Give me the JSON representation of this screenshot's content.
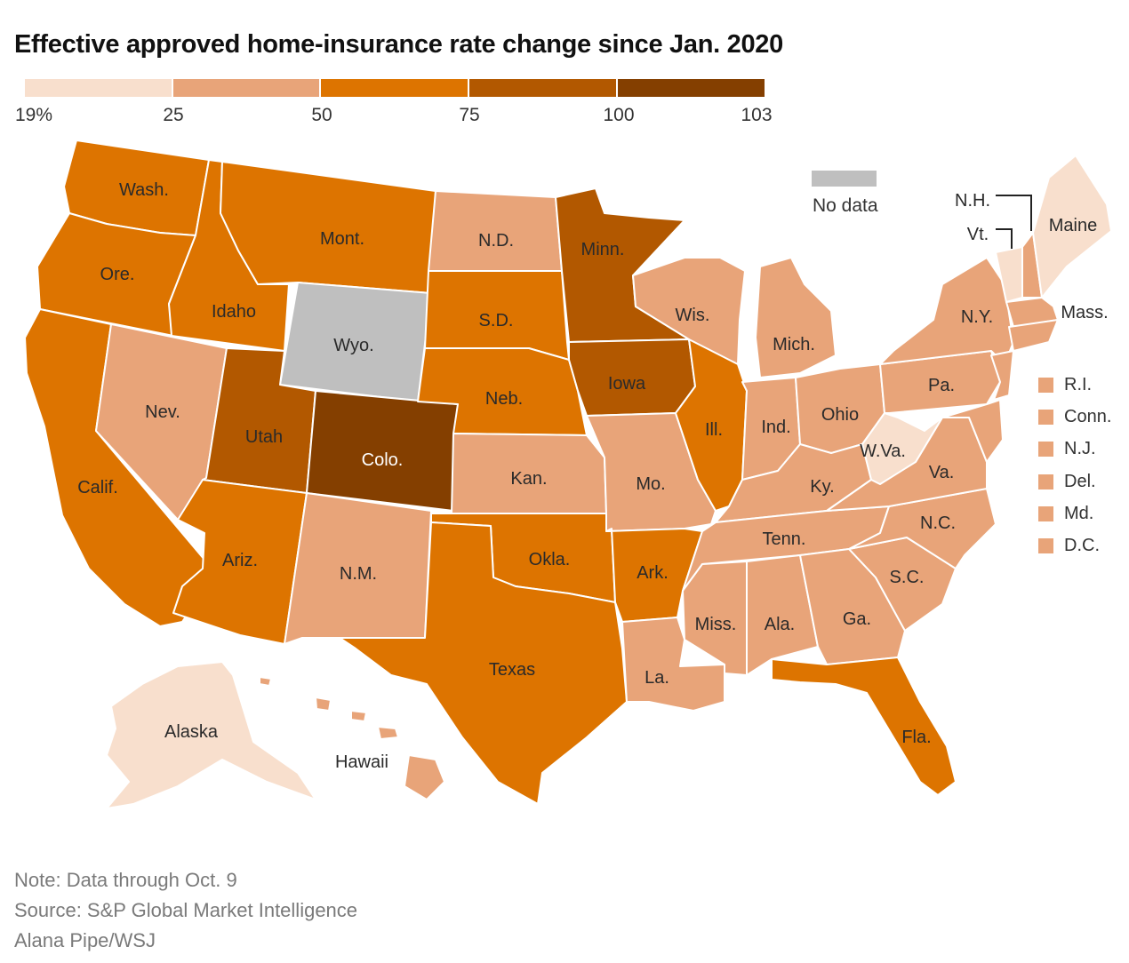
{
  "title": "Effective approved home-insurance rate change since Jan. 2020",
  "legend": {
    "colors": [
      "#f8dfcd",
      "#e8a479",
      "#dd7400",
      "#b25800",
      "#843f00"
    ],
    "ticks": [
      "19%",
      "25",
      "50",
      "75",
      "100",
      "103"
    ],
    "no_data_label": "No data",
    "no_data_color": "#bfbfbf"
  },
  "states": {
    "wash": {
      "label": "Wash.",
      "color": "#dd7400"
    },
    "ore": {
      "label": "Ore.",
      "color": "#dd7400"
    },
    "calif": {
      "label": "Calif.",
      "color": "#dd7400"
    },
    "idaho": {
      "label": "Idaho",
      "color": "#dd7400"
    },
    "nev": {
      "label": "Nev.",
      "color": "#e8a479"
    },
    "mont": {
      "label": "Mont.",
      "color": "#dd7400"
    },
    "wyo": {
      "label": "Wyo.",
      "color": "#bfbfbf"
    },
    "utah": {
      "label": "Utah",
      "color": "#b25800"
    },
    "ariz": {
      "label": "Ariz.",
      "color": "#dd7400"
    },
    "colo": {
      "label": "Colo.",
      "color": "#843f00"
    },
    "nm": {
      "label": "N.M.",
      "color": "#e8a479"
    },
    "nd": {
      "label": "N.D.",
      "color": "#e8a479"
    },
    "sd": {
      "label": "S.D.",
      "color": "#dd7400"
    },
    "neb": {
      "label": "Neb.",
      "color": "#dd7400"
    },
    "kan": {
      "label": "Kan.",
      "color": "#e8a479"
    },
    "okla": {
      "label": "Okla.",
      "color": "#dd7400"
    },
    "texas": {
      "label": "Texas",
      "color": "#dd7400"
    },
    "minn": {
      "label": "Minn.",
      "color": "#b25800"
    },
    "iowa": {
      "label": "Iowa",
      "color": "#b25800"
    },
    "mo": {
      "label": "Mo.",
      "color": "#e8a479"
    },
    "ark": {
      "label": "Ark.",
      "color": "#dd7400"
    },
    "la": {
      "label": "La.",
      "color": "#e8a479"
    },
    "wis": {
      "label": "Wis.",
      "color": "#e8a479"
    },
    "ill": {
      "label": "Ill.",
      "color": "#dd7400"
    },
    "mich": {
      "label": "Mich.",
      "color": "#e8a479"
    },
    "ind": {
      "label": "Ind.",
      "color": "#e8a479"
    },
    "ohio": {
      "label": "Ohio",
      "color": "#e8a479"
    },
    "ky": {
      "label": "Ky.",
      "color": "#e8a479"
    },
    "tenn": {
      "label": "Tenn.",
      "color": "#e8a479"
    },
    "miss": {
      "label": "Miss.",
      "color": "#e8a479"
    },
    "ala": {
      "label": "Ala.",
      "color": "#e8a479"
    },
    "ga": {
      "label": "Ga.",
      "color": "#e8a479"
    },
    "fla": {
      "label": "Fla.",
      "color": "#dd7400"
    },
    "sc": {
      "label": "S.C.",
      "color": "#e8a479"
    },
    "nc": {
      "label": "N.C.",
      "color": "#e8a479"
    },
    "va": {
      "label": "Va.",
      "color": "#e8a479"
    },
    "wva": {
      "label": "W.Va.",
      "color": "#f8dfcd"
    },
    "pa": {
      "label": "Pa.",
      "color": "#e8a479"
    },
    "ny": {
      "label": "N.Y.",
      "color": "#e8a479"
    },
    "vt": {
      "label": "Vt.",
      "color": "#f8dfcd"
    },
    "nh": {
      "label": "N.H.",
      "color": "#e8a479"
    },
    "maine": {
      "label": "Maine",
      "color": "#f8dfcd"
    },
    "mass": {
      "label": "Mass.",
      "color": "#e8a479"
    },
    "alaska": {
      "label": "Alaska",
      "color": "#f8dfcd"
    },
    "hawaii": {
      "label": "Hawaii",
      "color": "#e8a479"
    }
  },
  "small_states": [
    {
      "label": "R.I.",
      "color": "#e8a479"
    },
    {
      "label": "Conn.",
      "color": "#e8a479"
    },
    {
      "label": "N.J.",
      "color": "#e8a479"
    },
    {
      "label": "Del.",
      "color": "#e8a479"
    },
    {
      "label": "Md.",
      "color": "#e8a479"
    },
    {
      "label": "D.C.",
      "color": "#e8a479"
    }
  ],
  "notes": {
    "note": "Note: Data through Oct. 9",
    "source": "Source: S&P Global Market Intelligence",
    "credit": "Alana Pipe/WSJ"
  }
}
